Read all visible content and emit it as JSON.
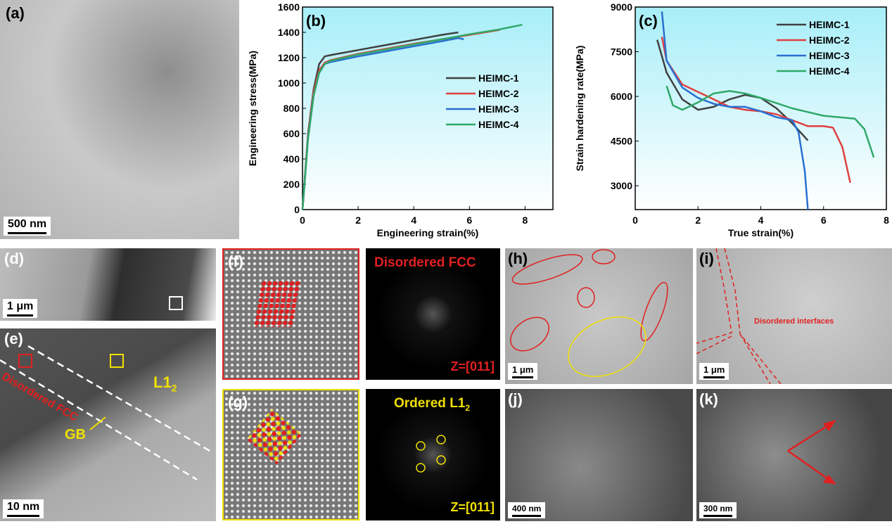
{
  "panels": {
    "a": {
      "label": "(a)",
      "scale": "500 nm"
    },
    "d": {
      "label": "(d)",
      "scale": "1 μm"
    },
    "e": {
      "label": "(e)",
      "scale": "10 nm",
      "text_disordered": "Disordered FCC",
      "text_l12": "L1",
      "text_l12_sub": "2",
      "text_gb": "GB"
    },
    "f": {
      "label": "(f)",
      "fft_title": "Disordered FCC",
      "zone": "Z=[011]"
    },
    "g": {
      "label": "(g)",
      "fft_title": "Ordered L1",
      "fft_title_sub": "2",
      "zone": "Z=[011]"
    },
    "h": {
      "label": "(h)",
      "scale": "1 μm"
    },
    "i": {
      "label": "(i)",
      "scale": "1 μm",
      "text": "Disordered interfaces"
    },
    "j": {
      "label": "(j)",
      "scale": "400 nm"
    },
    "k": {
      "label": "(k)",
      "scale": "300 nm"
    }
  },
  "colors": {
    "HEIMC-1": "#404040",
    "HEIMC-2": "#e04040",
    "HEIMC-3": "#2a6fd0",
    "HEIMC-4": "#30a868",
    "bg_top": "#a8eef8",
    "bg_bottom": "#ffffff",
    "red_mark": "#e02020",
    "yellow_mark": "#f0e000"
  },
  "chart_data": [
    {
      "panel": "(b)",
      "type": "line",
      "xlabel": "Engineering strain(%)",
      "ylabel": "Engineering stress(MPa)",
      "xlim": [
        0,
        9
      ],
      "ylim": [
        0,
        1600
      ],
      "xticks": [
        0,
        2,
        4,
        6,
        8
      ],
      "yticks": [
        0,
        200,
        400,
        600,
        800,
        1000,
        1200,
        1400,
        1600
      ],
      "legend": "right",
      "grid": false,
      "series": [
        {
          "name": "HEIMC-1",
          "x": [
            0,
            0.2,
            0.4,
            0.6,
            0.8,
            1,
            2,
            3,
            4,
            5,
            5.6
          ],
          "y": [
            0,
            600,
            950,
            1150,
            1210,
            1220,
            1260,
            1300,
            1340,
            1380,
            1400
          ]
        },
        {
          "name": "HEIMC-2",
          "x": [
            0,
            0.2,
            0.4,
            0.6,
            0.8,
            1,
            2,
            3,
            4,
            5,
            6,
            7.1
          ],
          "y": [
            0,
            580,
            930,
            1100,
            1160,
            1180,
            1230,
            1270,
            1310,
            1345,
            1380,
            1420
          ]
        },
        {
          "name": "HEIMC-3",
          "x": [
            0,
            0.2,
            0.4,
            0.6,
            0.8,
            1,
            2,
            3,
            4,
            5,
            5.6,
            5.8
          ],
          "y": [
            0,
            560,
            900,
            1080,
            1150,
            1165,
            1210,
            1250,
            1290,
            1330,
            1355,
            1345
          ]
        },
        {
          "name": "HEIMC-4",
          "x": [
            0,
            0.2,
            0.4,
            0.6,
            0.8,
            1,
            2,
            3,
            4,
            5,
            6,
            7,
            7.9
          ],
          "y": [
            0,
            560,
            900,
            1080,
            1150,
            1175,
            1225,
            1265,
            1305,
            1345,
            1385,
            1420,
            1460
          ]
        }
      ]
    },
    {
      "panel": "(c)",
      "type": "line",
      "xlabel": "True strain(%)",
      "ylabel": "Strain hardening rate(MPa)",
      "xlim": [
        0,
        8
      ],
      "ylim": [
        2200,
        9000
      ],
      "xticks": [
        0,
        2,
        4,
        6,
        8
      ],
      "yticks": [
        3000,
        4500,
        6000,
        7500,
        9000
      ],
      "legend": "top-right",
      "grid": false,
      "series": [
        {
          "name": "HEIMC-1",
          "x": [
            0.7,
            1,
            1.5,
            2,
            2.5,
            3,
            3.5,
            4,
            4.5,
            5,
            5.5
          ],
          "y": [
            7900,
            6800,
            5900,
            5550,
            5650,
            5900,
            6050,
            5950,
            5600,
            5100,
            4520
          ]
        },
        {
          "name": "HEIMC-2",
          "x": [
            0.85,
            1,
            1.5,
            2,
            2.5,
            3,
            3.5,
            4,
            4.5,
            5,
            5.5,
            6,
            6.3,
            6.6,
            6.85
          ],
          "y": [
            8000,
            7200,
            6400,
            6150,
            5900,
            5650,
            5550,
            5500,
            5400,
            5200,
            5000,
            5000,
            4950,
            4300,
            3100
          ]
        },
        {
          "name": "HEIMC-3",
          "x": [
            0.85,
            1,
            1.5,
            2,
            2.5,
            3,
            3.5,
            4,
            4.5,
            5,
            5.2,
            5.4,
            5.5
          ],
          "y": [
            8850,
            7200,
            6300,
            5950,
            5750,
            5650,
            5650,
            5500,
            5300,
            5200,
            4800,
            3500,
            2200
          ]
        },
        {
          "name": "HEIMC-4",
          "x": [
            1,
            1.2,
            1.5,
            2,
            2.5,
            3,
            3.5,
            4,
            5,
            6,
            7,
            7.3,
            7.6
          ],
          "y": [
            6350,
            5700,
            5550,
            5800,
            6100,
            6180,
            6100,
            5950,
            5600,
            5350,
            5250,
            4900,
            3950
          ]
        }
      ]
    }
  ]
}
